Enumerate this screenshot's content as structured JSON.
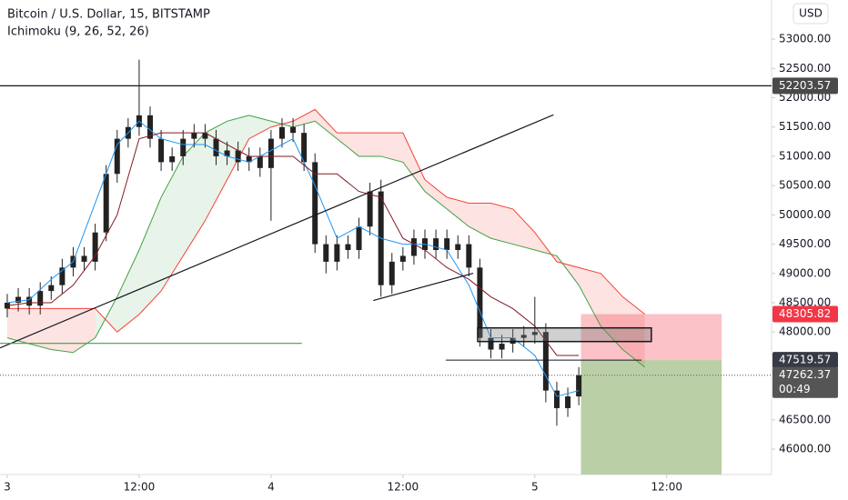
{
  "chart_data": {
    "type": "candlestick",
    "title": "Bitcoin / U.S. Dollar, 15, BITSTAMP",
    "subtitle": "Ichimoku (9, 26, 52, 26)",
    "currency": "USD",
    "countdown": "00:49",
    "xlim": [
      -0.66,
      69.54
    ],
    "ylim": [
      45566,
      53669
    ],
    "xticks": [
      {
        "value": 0,
        "label": "3"
      },
      {
        "value": 12,
        "label": "12:00"
      },
      {
        "value": 24,
        "label": "4"
      },
      {
        "value": 36,
        "label": "12:00"
      },
      {
        "value": 48,
        "label": "5"
      },
      {
        "value": 60,
        "label": "12:00"
      }
    ],
    "yticks": [
      {
        "value": 46000,
        "label": "46000.00"
      },
      {
        "value": 46500,
        "label": "46500.00"
      },
      {
        "value": 48000,
        "label": "48000.00"
      },
      {
        "value": 48500,
        "label": "48500.00"
      },
      {
        "value": 49000,
        "label": "49000.00"
      },
      {
        "value": 49500,
        "label": "49500.00"
      },
      {
        "value": 50000,
        "label": "50000.00"
      },
      {
        "value": 50500,
        "label": "50500.00"
      },
      {
        "value": 51000,
        "label": "51000.00"
      },
      {
        "value": 51500,
        "label": "51500.00"
      },
      {
        "value": 52000,
        "label": "52000.00"
      },
      {
        "value": 52500,
        "label": "52500.00"
      },
      {
        "value": 53000,
        "label": "53000.00"
      }
    ],
    "candle_color": "#222222",
    "x": [
      0,
      1,
      2,
      3,
      4,
      5,
      6,
      7,
      8,
      9,
      10,
      11,
      12,
      13,
      14,
      15,
      16,
      17,
      18,
      19,
      20,
      21,
      22,
      23,
      24,
      25,
      26,
      27,
      28,
      29,
      30,
      31,
      32,
      33,
      34,
      35,
      36,
      37,
      38,
      39,
      40,
      41,
      42,
      43,
      44,
      45,
      46,
      47,
      48,
      49,
      50,
      51,
      52
    ],
    "open": [
      48400,
      48500,
      48600,
      48450,
      48700,
      48800,
      49100,
      49300,
      49200,
      49700,
      50700,
      51300,
      51500,
      51700,
      51300,
      50900,
      51000,
      51300,
      51400,
      51300,
      51000,
      51100,
      50900,
      51000,
      50800,
      51300,
      51500,
      51400,
      50900,
      49500,
      49200,
      49500,
      49400,
      49800,
      50400,
      48800,
      49200,
      49300,
      49600,
      49400,
      49600,
      49400,
      49500,
      49100,
      47900,
      47700,
      47800,
      47900,
      47950,
      48000,
      47000,
      46700,
      46900
    ],
    "high": [
      48650,
      48750,
      48750,
      48850,
      48950,
      49250,
      49450,
      49450,
      49850,
      50850,
      51450,
      51650,
      52650,
      51850,
      51450,
      51150,
      51450,
      51550,
      51550,
      51450,
      51250,
      51250,
      51150,
      51150,
      51450,
      51650,
      51650,
      51550,
      51050,
      49650,
      49650,
      49650,
      49950,
      50550,
      50600,
      49350,
      49450,
      49750,
      49750,
      49750,
      49750,
      49650,
      49650,
      49250,
      48050,
      47950,
      48050,
      48100,
      48600,
      48150,
      47150,
      47050,
      47400
    ],
    "low": [
      48250,
      48350,
      48300,
      48300,
      48550,
      48650,
      48950,
      49050,
      49050,
      49550,
      50550,
      51150,
      51350,
      51150,
      50750,
      50750,
      50850,
      51150,
      51150,
      50850,
      50850,
      50750,
      50750,
      50650,
      49900,
      51150,
      51250,
      50750,
      49350,
      49000,
      49050,
      49250,
      49250,
      49650,
      48600,
      48650,
      49050,
      49150,
      49250,
      49250,
      49250,
      49250,
      48950,
      47750,
      47550,
      47550,
      47650,
      47750,
      47800,
      46800,
      46400,
      46550,
      46750
    ],
    "close": [
      48500,
      48600,
      48450,
      48700,
      48800,
      49100,
      49300,
      49200,
      49700,
      50700,
      51300,
      51500,
      51700,
      51300,
      50900,
      51000,
      51300,
      51400,
      51300,
      51000,
      51100,
      50900,
      51000,
      50800,
      51300,
      51500,
      51400,
      50900,
      49500,
      49200,
      49500,
      49400,
      49800,
      50400,
      48800,
      49200,
      49300,
      49600,
      49400,
      49600,
      49400,
      49500,
      49100,
      47900,
      47700,
      47800,
      47900,
      47950,
      48000,
      47000,
      46700,
      46900,
      47262.37
    ],
    "line_x": [
      0,
      2,
      4,
      6,
      8,
      10,
      12,
      14,
      16,
      18,
      20,
      22,
      24,
      26,
      28,
      30,
      32,
      34,
      36,
      38,
      40,
      42,
      44,
      46,
      48,
      50,
      52
    ],
    "tenkan": {
      "color": "#2196f3",
      "values": [
        48500,
        48550,
        48900,
        49200,
        50200,
        51200,
        51600,
        51300,
        51200,
        51200,
        51000,
        50900,
        51100,
        51300,
        50500,
        49600,
        49800,
        49600,
        49500,
        49500,
        49400,
        48800,
        47900,
        47900,
        47600,
        46900,
        47000
      ]
    },
    "kijun": {
      "color": "#801922",
      "values": [
        48450,
        48500,
        48500,
        48800,
        49300,
        50000,
        51300,
        51400,
        51400,
        51400,
        51200,
        51000,
        51000,
        51000,
        50700,
        50700,
        50400,
        50300,
        49600,
        49400,
        49100,
        48900,
        48600,
        48400,
        48100,
        47600,
        47600
      ]
    },
    "span_x": [
      0,
      2,
      4,
      6,
      8,
      10,
      12,
      14,
      16,
      18,
      20,
      22,
      24,
      26,
      28,
      30,
      32,
      34,
      36,
      38,
      40,
      42,
      44,
      46,
      48,
      50,
      52,
      54,
      56,
      58
    ],
    "span_a": {
      "color": "#43a047",
      "values": [
        47900,
        47800,
        47700,
        47650,
        47900,
        48600,
        49400,
        50300,
        51000,
        51400,
        51600,
        51700,
        51600,
        51500,
        51600,
        51300,
        51000,
        51000,
        50900,
        50400,
        50100,
        49800,
        49600,
        49500,
        49400,
        49300,
        48800,
        48100,
        47700,
        47400
      ]
    },
    "span_b": {
      "color": "#f44336",
      "values": [
        48400,
        48400,
        48400,
        48400,
        48400,
        48000,
        48300,
        48700,
        49300,
        49900,
        50600,
        51300,
        51500,
        51600,
        51800,
        51400,
        51400,
        51400,
        51400,
        50600,
        50300,
        50200,
        50200,
        50100,
        49700,
        49200,
        49100,
        49000,
        48600,
        48305.82
      ]
    },
    "resistance": 52203.57,
    "last_price": 47262.37,
    "trend_line": {
      "x": [
        -0.66,
        49.7
      ],
      "y": [
        47728,
        51709
      ]
    },
    "wedge_line": {
      "x": [
        33.3,
        42.4
      ],
      "y": [
        48537,
        49003
      ]
    },
    "support_line": {
      "x": [
        -0.66,
        26.8
      ],
      "y": [
        47806,
        47806
      ]
    },
    "zone": {
      "x": [
        42.8,
        58.6
      ],
      "y": [
        47837,
        48070
      ]
    },
    "entry_line_x": [
      39.9,
      57.7
    ],
    "position": {
      "x": [
        52.2,
        65.0
      ],
      "entry": 47519.57,
      "stop": 48305.82,
      "target": 45570
    }
  }
}
